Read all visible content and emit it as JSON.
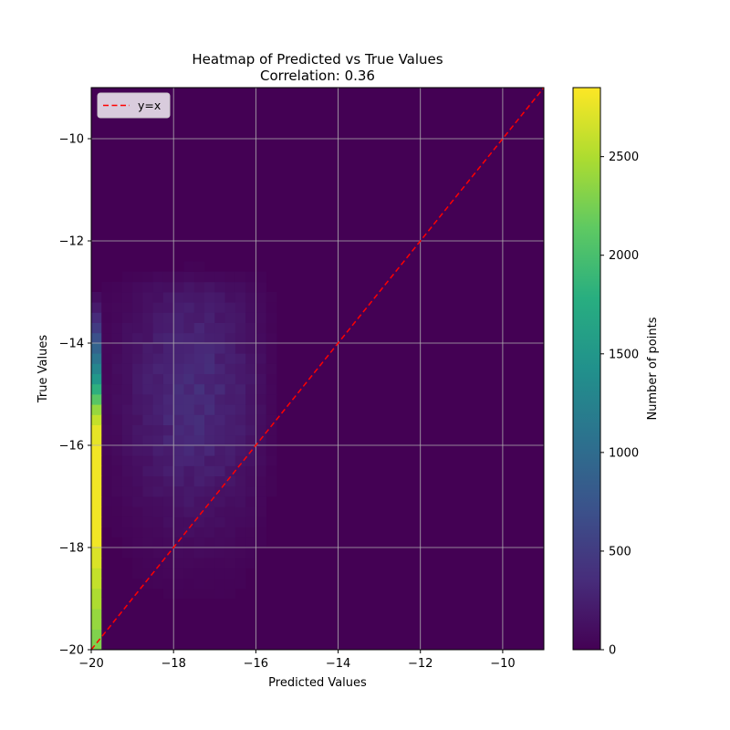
{
  "chart_data": {
    "type": "heatmap",
    "title": "Heatmap of Predicted vs True Values",
    "subtitle": "Correlation: 0.36",
    "xlabel": "Predicted Values",
    "ylabel": "True Values",
    "xlim": [
      -20,
      -9
    ],
    "ylim": [
      -20,
      -9
    ],
    "xticks": [
      -20,
      -18,
      -16,
      -14,
      -12,
      -10
    ],
    "yticks": [
      -20,
      -18,
      -16,
      -14,
      -12,
      -10
    ],
    "x_tick_labels": [
      "−20",
      "−18",
      "−16",
      "−14",
      "−12",
      "−10"
    ],
    "y_tick_labels": [
      "−20",
      "−18",
      "−16",
      "−14",
      "−12",
      "−10"
    ],
    "grid": true,
    "colormap": "viridis",
    "colorbar": {
      "label": "Number of points",
      "range": [
        0,
        2850
      ],
      "ticks": [
        0,
        500,
        1000,
        1500,
        2000,
        2500
      ],
      "tick_labels": [
        "0",
        "500",
        "1000",
        "1500",
        "2000",
        "2500"
      ]
    },
    "legend": {
      "position": "top-left",
      "entries": [
        {
          "label": "y=x",
          "color": "#ff0000",
          "style": "dashed"
        }
      ]
    },
    "reference_line": {
      "name": "y=x",
      "color": "#ff0000",
      "style": "dashed",
      "from": [
        -20,
        -20
      ],
      "to": [
        -9,
        -9
      ]
    },
    "bins": {
      "x_start": -20,
      "x_end": -9,
      "nx": 44,
      "y_start": -20,
      "y_end": -9,
      "ny": 55
    },
    "edge_column": {
      "x_range": [
        -20,
        -19.75
      ],
      "y_range": [
        -20,
        -13.0
      ],
      "values_bottom_to_top": [
        2300,
        2300,
        2400,
        2400,
        2500,
        2500,
        2600,
        2600,
        2700,
        2700,
        2800,
        2800,
        2800,
        2800,
        2800,
        2800,
        2800,
        2800,
        2800,
        2800,
        2750,
        2750,
        2600,
        2400,
        2100,
        1800,
        1500,
        1300,
        1100,
        900,
        700,
        500,
        350,
        200,
        100
      ]
    },
    "background_region": {
      "description_of_values": "low counts (roughly 0-350) concentrated for predicted in [-20, -16] and true in [-20, -12]",
      "peak_value": 350,
      "peak_center": [
        -17.5,
        -15.0
      ]
    }
  }
}
